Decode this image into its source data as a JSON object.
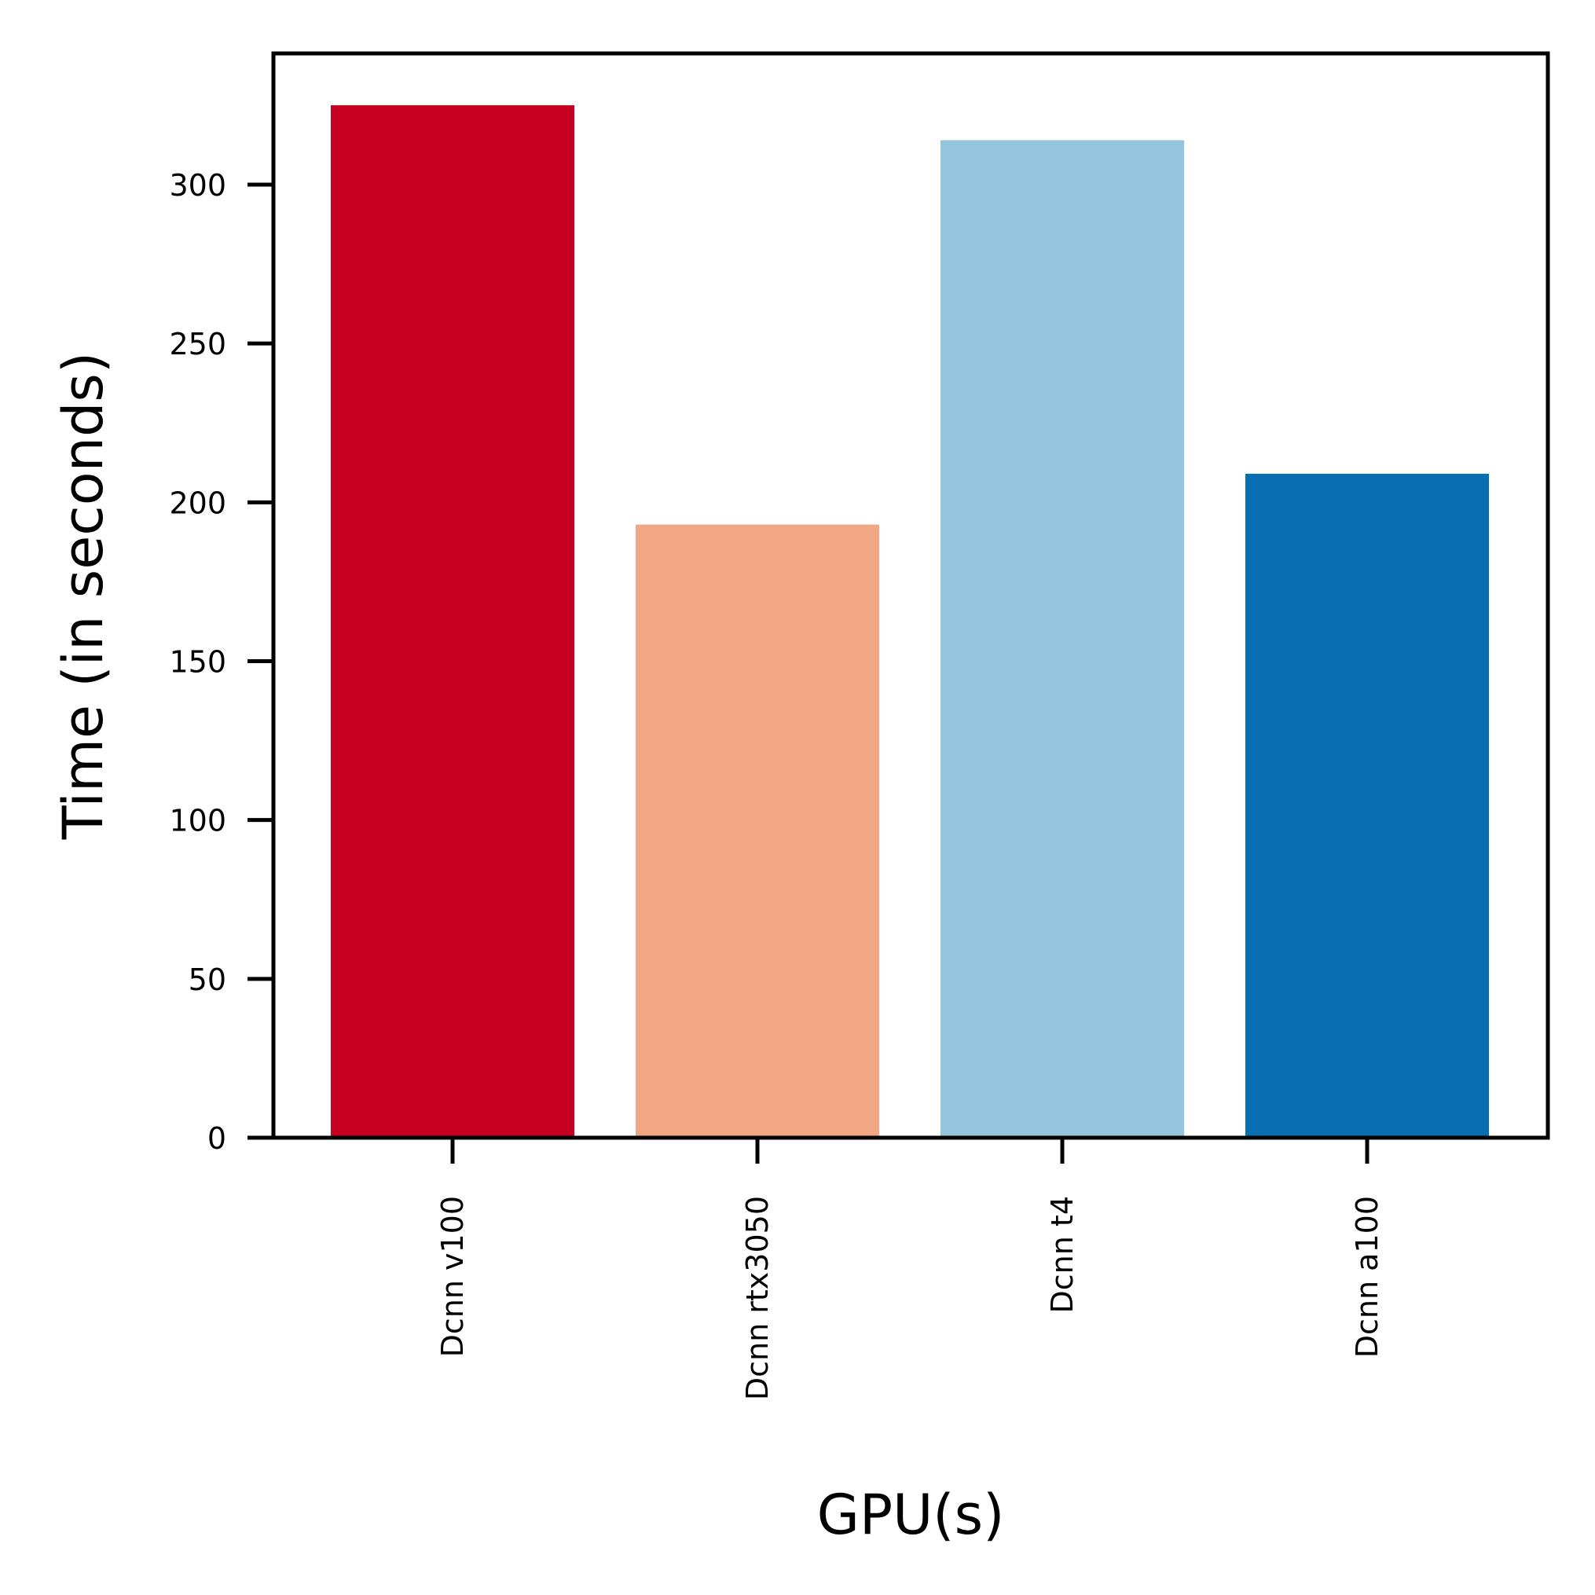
{
  "chart_data": {
    "type": "bar",
    "title": "",
    "xlabel": "GPU(s)",
    "ylabel": "Time (in seconds)",
    "categories": [
      "Dcnn v100",
      "Dcnn rtx3050",
      "Dcnn t4",
      "Dcnn a100"
    ],
    "values": [
      325,
      193,
      314,
      209
    ],
    "colors": [
      "#c70022",
      "#f2a784",
      "#94c5de",
      "#0870b1"
    ],
    "ylim": [
      0,
      341.3
    ],
    "yticks": [
      0,
      50,
      100,
      150,
      200,
      250,
      300
    ],
    "grid": false,
    "legend": "none"
  }
}
